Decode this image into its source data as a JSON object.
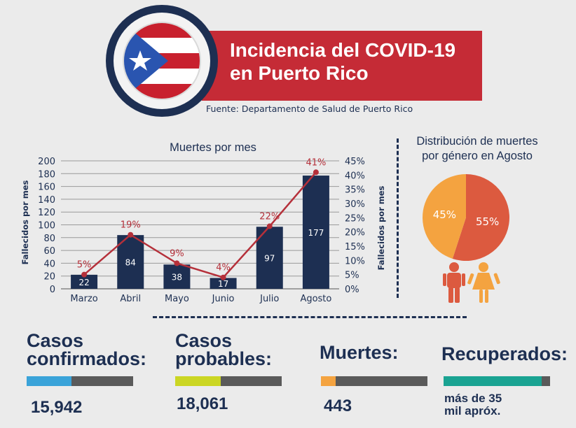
{
  "header": {
    "title_line_1": "Incidencia del COVID-19",
    "title_line_2": "en Puerto Rico",
    "source": "Fuente: Departamento de Salud de Puerto Rico"
  },
  "colors": {
    "navy": "#1d2f52",
    "red": "#c52b36",
    "line_red": "#b5303a",
    "pie_orange": "#f4a340",
    "pie_red": "#dc5a3f",
    "bar_gray": "#5a5a5a"
  },
  "chart_data": [
    {
      "type": "bar",
      "title": "Muertes por mes",
      "categories": [
        "Marzo",
        "Abril",
        "Mayo",
        "Junio",
        "Julio",
        "Agosto"
      ],
      "values": [
        22,
        84,
        38,
        17,
        97,
        177
      ],
      "ylabel": "Fallecidos por mes",
      "ylim": [
        0,
        200
      ],
      "yticks": [
        "0",
        "20",
        "40",
        "60",
        "80",
        "100",
        "120",
        "140",
        "160",
        "180",
        "200"
      ],
      "y2label": "Fallecidos por mes",
      "y2lim": [
        0,
        45
      ],
      "y2ticks": [
        "0%",
        "5%",
        "10%",
        "15%",
        "20%",
        "25%",
        "30%",
        "35%",
        "40%",
        "45%"
      ],
      "line_values": [
        5,
        19,
        9,
        4,
        22,
        41
      ],
      "line_labels": [
        "5%",
        "19%",
        "9%",
        "4%",
        "22%",
        "41%"
      ],
      "grid": true
    },
    {
      "type": "pie",
      "title_lines": [
        "Distribución de muertes",
        "por género en Agosto"
      ],
      "slices": [
        {
          "value": 45,
          "label": "45%",
          "color": "#f4a340",
          "icon": "female-figure-icon"
        },
        {
          "value": 55,
          "label": "55%",
          "color": "#dc5a3f",
          "icon": "male-figure-icon"
        }
      ]
    }
  ],
  "stats": [
    {
      "label_lines": [
        "Casos",
        "confirmados:"
      ],
      "value": "15,942",
      "fill": 0.42,
      "fill_color": "#3aa3d9"
    },
    {
      "label_lines": [
        "Casos",
        "probables:"
      ],
      "value": "18,061",
      "fill": 0.43,
      "fill_color": "#cbd624"
    },
    {
      "label_lines": [
        "Muertes:"
      ],
      "value": "443",
      "fill": 0.14,
      "fill_color": "#f4a340"
    },
    {
      "label_lines": [
        "Recuperados:"
      ],
      "value_lines": [
        "más de 35",
        "mil apróx."
      ],
      "fill": 0.92,
      "fill_color": "#1aa392"
    }
  ]
}
